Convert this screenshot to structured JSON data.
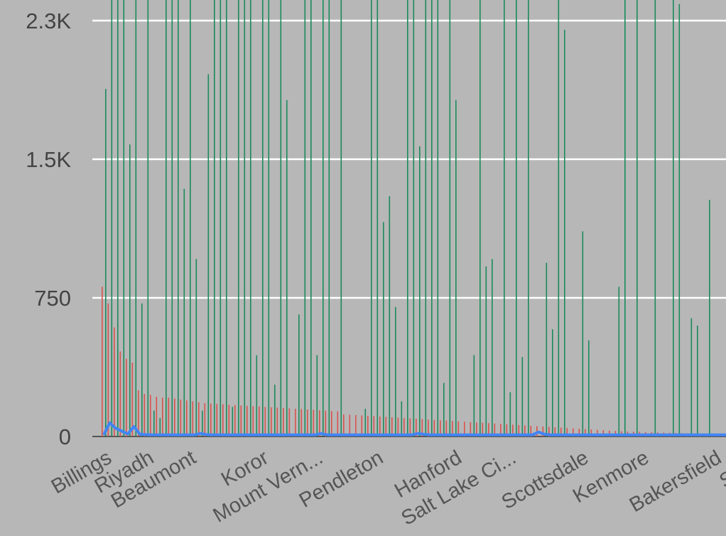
{
  "chart_data": {
    "type": "bar",
    "title": "",
    "xlabel": "",
    "ylabel": "",
    "background": "#b7b7b7",
    "grid": true,
    "ylim": [
      0,
      2300
    ],
    "yticks": [
      {
        "value": 0,
        "label": "0"
      },
      {
        "value": 750,
        "label": "750"
      },
      {
        "value": 1500,
        "label": "1.5K"
      },
      {
        "value": 2250,
        "label": "2.3K"
      }
    ],
    "xtick_labels": [
      {
        "index": 0,
        "label": "Billings"
      },
      {
        "index": 7,
        "label": "Riyadh"
      },
      {
        "index": 14,
        "label": "Beaumont"
      },
      {
        "index": 26,
        "label": "Koror"
      },
      {
        "index": 35,
        "label": "Mount Vern..."
      },
      {
        "index": 45,
        "label": "Pendleton"
      },
      {
        "index": 58,
        "label": "Hanford"
      },
      {
        "index": 67,
        "label": "Salt Lake Ci..."
      },
      {
        "index": 79,
        "label": "Scottsdale"
      },
      {
        "index": 89,
        "label": "Kenmore"
      },
      {
        "index": 101,
        "label": "Bakersfield"
      },
      {
        "index": 109,
        "label": "Sea..."
      }
    ],
    "series": [
      {
        "color": "#d9534f",
        "values": [
          810,
          720,
          590,
          460,
          420,
          400,
          250,
          230,
          225,
          215,
          210,
          210,
          205,
          200,
          195,
          190,
          185,
          180,
          178,
          176,
          174,
          172,
          170,
          168,
          166,
          164,
          162,
          160,
          158,
          156,
          154,
          152,
          150,
          148,
          146,
          144,
          142,
          140,
          138,
          136,
          120,
          118,
          116,
          114,
          112,
          110,
          108,
          106,
          104,
          102,
          100,
          98,
          96,
          94,
          92,
          90,
          88,
          86,
          84,
          82,
          80,
          78,
          76,
          74,
          72,
          70,
          68,
          66,
          64,
          62,
          60,
          58,
          56,
          54,
          52,
          50,
          48,
          46,
          44,
          42,
          40,
          38,
          36,
          34,
          32,
          30,
          28,
          27,
          26,
          25,
          24,
          23,
          22,
          21,
          20,
          19,
          18,
          17,
          16,
          15,
          14,
          13,
          12,
          11,
          10,
          9,
          8,
          8,
          7,
          7,
          6,
          6
        ]
      },
      {
        "color": "#1a8a5a",
        "values": [
          1880,
          2400,
          2400,
          2400,
          1580,
          2400,
          720,
          2400,
          140,
          100,
          2400,
          2400,
          2400,
          1340,
          2400,
          960,
          140,
          1960,
          2400,
          2400,
          2400,
          160,
          2400,
          2400,
          2400,
          440,
          2400,
          2400,
          280,
          2400,
          1820,
          0,
          660,
          2400,
          2400,
          440,
          2400,
          2400,
          0,
          2400,
          0,
          0,
          0,
          150,
          2400,
          2400,
          1160,
          1300,
          700,
          190,
          2400,
          2400,
          1570,
          2400,
          2400,
          2400,
          290,
          2400,
          1820,
          0,
          0,
          440,
          2400,
          920,
          960,
          0,
          2400,
          240,
          2400,
          430,
          2400,
          0,
          0,
          940,
          580,
          2400,
          2200,
          0,
          0,
          1110,
          520,
          0,
          0,
          0,
          0,
          810,
          2400,
          0,
          2400,
          0,
          0,
          2400,
          0,
          0,
          2400,
          2340,
          0,
          640,
          600,
          0,
          1280,
          0,
          0,
          0,
          0,
          0,
          0,
          0,
          0,
          0,
          0,
          0
        ]
      },
      {
        "color": "#4285f4",
        "values": [
          5,
          70,
          40,
          25,
          10,
          50,
          8,
          6,
          5,
          5,
          5,
          5,
          5,
          5,
          5,
          5,
          12,
          6,
          5,
          5,
          5,
          5,
          5,
          5,
          5,
          5,
          5,
          5,
          5,
          5,
          5,
          5,
          5,
          5,
          5,
          5,
          12,
          5,
          5,
          5,
          5,
          5,
          5,
          5,
          5,
          5,
          5,
          5,
          5,
          5,
          5,
          5,
          12,
          8,
          5,
          5,
          5,
          5,
          5,
          5,
          5,
          5,
          5,
          5,
          5,
          5,
          5,
          5,
          5,
          5,
          5,
          5,
          20,
          8,
          5,
          5,
          5,
          5,
          5,
          5,
          5,
          5,
          5,
          5,
          5,
          5,
          5,
          5,
          5,
          5,
          5,
          5,
          5,
          5,
          5,
          5,
          5,
          5,
          5,
          5,
          5,
          5,
          5,
          5,
          5,
          5,
          5,
          5,
          5,
          5,
          5,
          5
        ]
      }
    ]
  }
}
